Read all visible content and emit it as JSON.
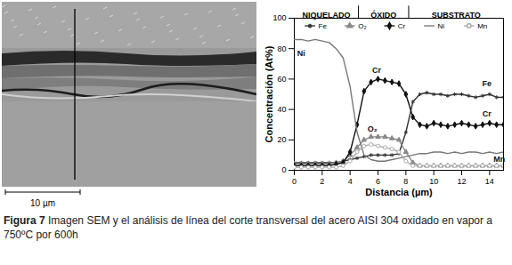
{
  "chart_data": {
    "type": "line",
    "x_label": "Distancia (µm)",
    "y_label": "Concentración (At%)",
    "xlim": [
      0,
      15
    ],
    "xticks": [
      0,
      2,
      4,
      6,
      8,
      10,
      12,
      14
    ],
    "ylim": [
      0,
      100
    ],
    "yticks": [
      0,
      20,
      40,
      60,
      80,
      100
    ],
    "grid": false,
    "legend": "top",
    "regions": [
      {
        "label": "NIQUELADO",
        "from": 0,
        "to": 4.6
      },
      {
        "label": "ÓXIDO",
        "from": 4.6,
        "to": 8.2
      },
      {
        "label": "SUBSTRATO",
        "from": 8.2,
        "to": 15
      }
    ],
    "x": [
      0,
      0.5,
      1,
      1.5,
      2,
      2.5,
      3,
      3.5,
      4,
      4.5,
      5,
      5.5,
      6,
      6.5,
      7,
      7.5,
      8,
      8.5,
      9,
      9.5,
      10,
      10.5,
      11,
      11.5,
      12,
      12.5,
      13,
      13.5,
      14,
      14.5,
      15
    ],
    "series": [
      {
        "name": "Fe",
        "color": "#333333",
        "marker": "asterisk",
        "line_style": "solid",
        "values": [
          5,
          5,
          5,
          5,
          5,
          5,
          5,
          6,
          7,
          8,
          9,
          10,
          10,
          10,
          10,
          11,
          25,
          45,
          50,
          51,
          50,
          50,
          49,
          50,
          50,
          49,
          48,
          49,
          50,
          48,
          48
        ]
      },
      {
        "name": "O₂",
        "color": "#888888",
        "marker": "triangle",
        "line_style": "solid",
        "values": [
          4,
          4,
          4,
          4,
          4,
          4,
          5,
          6,
          10,
          15,
          20,
          22,
          22,
          22,
          21,
          20,
          12,
          5,
          3,
          3,
          3,
          3,
          3,
          3,
          3,
          3,
          3,
          3,
          3,
          3,
          3
        ]
      },
      {
        "name": "Cr",
        "color": "#111111",
        "marker": "diamond",
        "line_style": "solid",
        "values": [
          3,
          3,
          3,
          3,
          3,
          3,
          4,
          5,
          12,
          30,
          52,
          58,
          60,
          59,
          58,
          57,
          50,
          35,
          30,
          29,
          31,
          30,
          29,
          30,
          31,
          30,
          29,
          30,
          31,
          30,
          30
        ]
      },
      {
        "name": "Ni",
        "color": "#777777",
        "marker": "none",
        "line_style": "solid",
        "values": [
          86,
          86,
          85,
          86,
          85,
          84,
          80,
          74,
          55,
          25,
          10,
          7,
          6,
          6,
          7,
          8,
          9,
          10,
          11,
          11,
          12,
          12,
          11,
          12,
          11,
          12,
          12,
          11,
          12,
          11,
          12
        ]
      },
      {
        "name": "Mn",
        "color": "#aaaaaa",
        "marker": "circle",
        "line_style": "solid",
        "values": [
          2,
          2,
          2,
          2,
          2,
          2,
          2,
          3,
          6,
          12,
          16,
          17,
          16,
          15,
          14,
          12,
          6,
          3,
          3,
          3,
          3,
          3,
          3,
          3,
          3,
          3,
          3,
          3,
          3,
          3,
          3
        ]
      }
    ],
    "annotations": [
      {
        "text": "Ni",
        "x": 0.5,
        "y": 77
      },
      {
        "text": "Cr",
        "x": 5.9,
        "y": 66
      },
      {
        "text": "O₂",
        "x": 5.6,
        "y": 27
      },
      {
        "text": "Fe",
        "x": 13.8,
        "y": 57
      },
      {
        "text": "Cr",
        "x": 13.8,
        "y": 37
      },
      {
        "text": "Mn",
        "x": 14.7,
        "y": 7
      }
    ]
  },
  "image": {
    "scale_bar": "10 µm"
  },
  "caption": {
    "label": "Figura 7",
    "text": "Imagen SEM y el análisis de línea del corte transversal del acero AISI 304 oxidado en vapor a  750ºC por 600h"
  }
}
